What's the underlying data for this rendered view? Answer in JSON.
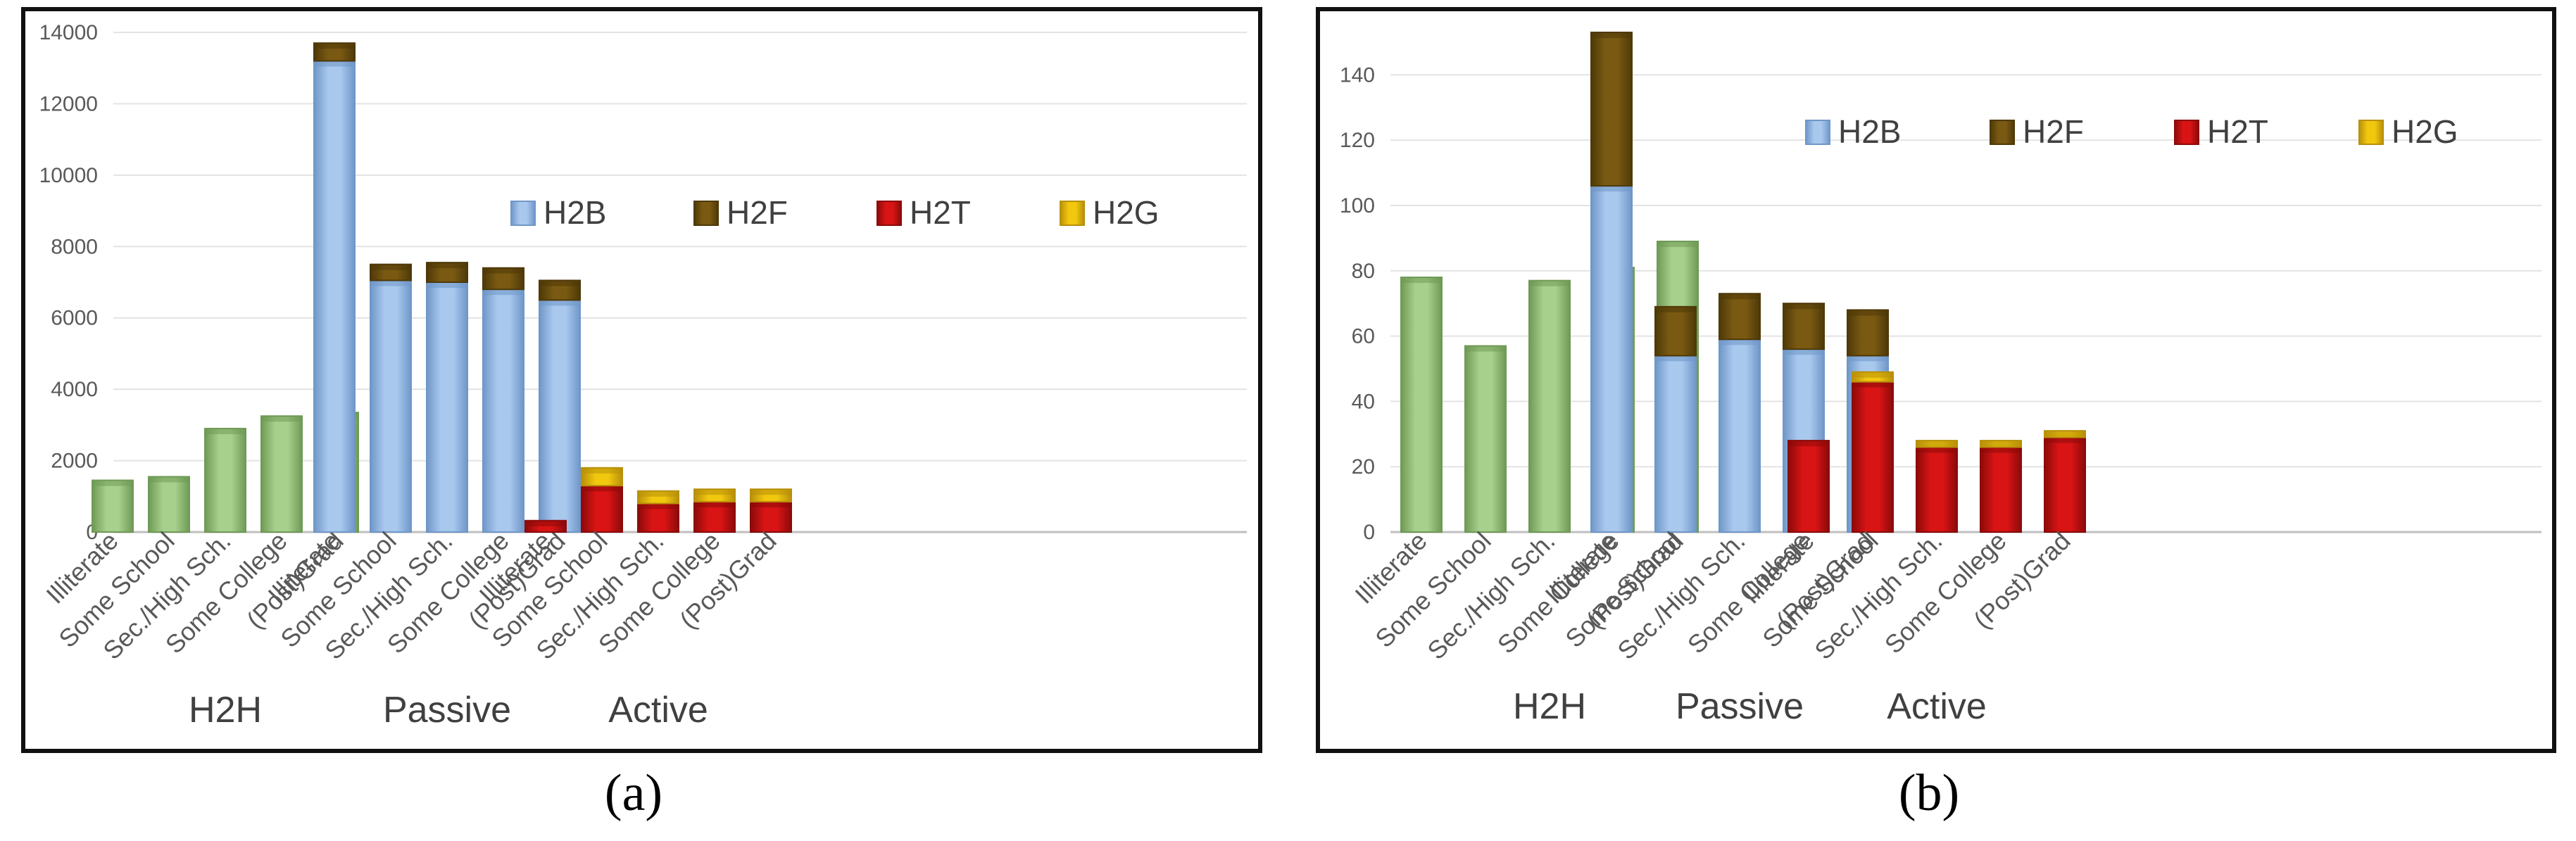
{
  "colors": {
    "H2B": "#a9c8ee",
    "H2B_edge": "#6f97c8",
    "H2F": "#7a5a12",
    "H2F_edge": "#4e3908",
    "H2T": "#d91414",
    "H2T_edge": "#8c0a0a",
    "H2G": "#f2c80f",
    "H2G_edge": "#b8900a",
    "H2H": "#a8d08d",
    "H2H_edge": "#6f9a56",
    "grid": "#e3e3e3",
    "axis": "#bfbfbf"
  },
  "captions": {
    "a": "(a)",
    "b": "(b)"
  },
  "chart_data": [
    {
      "type": "bar",
      "stacked": true,
      "panel": "a",
      "ylim": [
        0,
        14000
      ],
      "yticks": [
        0,
        2000,
        4000,
        6000,
        8000,
        10000,
        12000,
        14000
      ],
      "grid": true,
      "legend": {
        "position": "middle",
        "entries": [
          "H2B",
          "H2F",
          "H2T",
          "H2G"
        ]
      },
      "groups": [
        {
          "name": "H2H",
          "categories": [
            "Illiterate",
            "Some School",
            "Sec./High Sch.",
            "Some College",
            "(Post)Grad"
          ],
          "series": [
            {
              "name": "H2H",
              "values": [
                1450,
                1550,
                2900,
                3250,
                3350
              ]
            }
          ]
        },
        {
          "name": "Passive",
          "categories": [
            "Illiterate",
            "Some School",
            "Sec./High Sch.",
            "Some College",
            "(Post)Grad"
          ],
          "series": [
            {
              "name": "H2B",
              "values": [
                13200,
                7050,
                7000,
                6800,
                6500
              ]
            },
            {
              "name": "H2F",
              "values": [
                500,
                450,
                550,
                600,
                550
              ]
            }
          ]
        },
        {
          "name": "Active",
          "categories": [
            "Illiterate",
            "Some School",
            "Sec./High Sch.",
            "Some College",
            "(Post)Grad"
          ],
          "series": [
            {
              "name": "H2T",
              "values": [
                320,
                1300,
                800,
                850,
                850
              ]
            },
            {
              "name": "H2G",
              "values": [
                0,
                500,
                350,
                350,
                350
              ]
            }
          ]
        }
      ]
    },
    {
      "type": "bar",
      "stacked": true,
      "panel": "b",
      "ylim": [
        0,
        153
      ],
      "yticks": [
        0,
        20,
        40,
        60,
        80,
        100,
        120,
        140
      ],
      "grid": true,
      "legend": {
        "position": "top",
        "entries": [
          "H2B",
          "H2F",
          "H2T",
          "H2G"
        ]
      },
      "groups": [
        {
          "name": "H2H",
          "categories": [
            "Illiterate",
            "Some School",
            "Sec./High Sch.",
            "Some College",
            "(Post)Grad"
          ],
          "series": [
            {
              "name": "H2H",
              "values": [
                78,
                57,
                77,
                81,
                89
              ]
            }
          ]
        },
        {
          "name": "Passive",
          "categories": [
            "Illiterate",
            "Some School",
            "Sec./High Sch.",
            "Some College",
            "(Post)Grad"
          ],
          "series": [
            {
              "name": "H2B",
              "values": [
                106,
                54,
                59,
                56,
                54
              ]
            },
            {
              "name": "H2F",
              "values": [
                47,
                15,
                14,
                14,
                14
              ]
            }
          ]
        },
        {
          "name": "Active",
          "categories": [
            "Illiterate",
            "Some School",
            "Sec./High Sch.",
            "Some College",
            "(Post)Grad"
          ],
          "series": [
            {
              "name": "H2T",
              "values": [
                28,
                46,
                26,
                26,
                29
              ]
            },
            {
              "name": "H2G",
              "values": [
                0,
                3,
                2,
                2,
                2
              ]
            }
          ]
        }
      ]
    }
  ]
}
